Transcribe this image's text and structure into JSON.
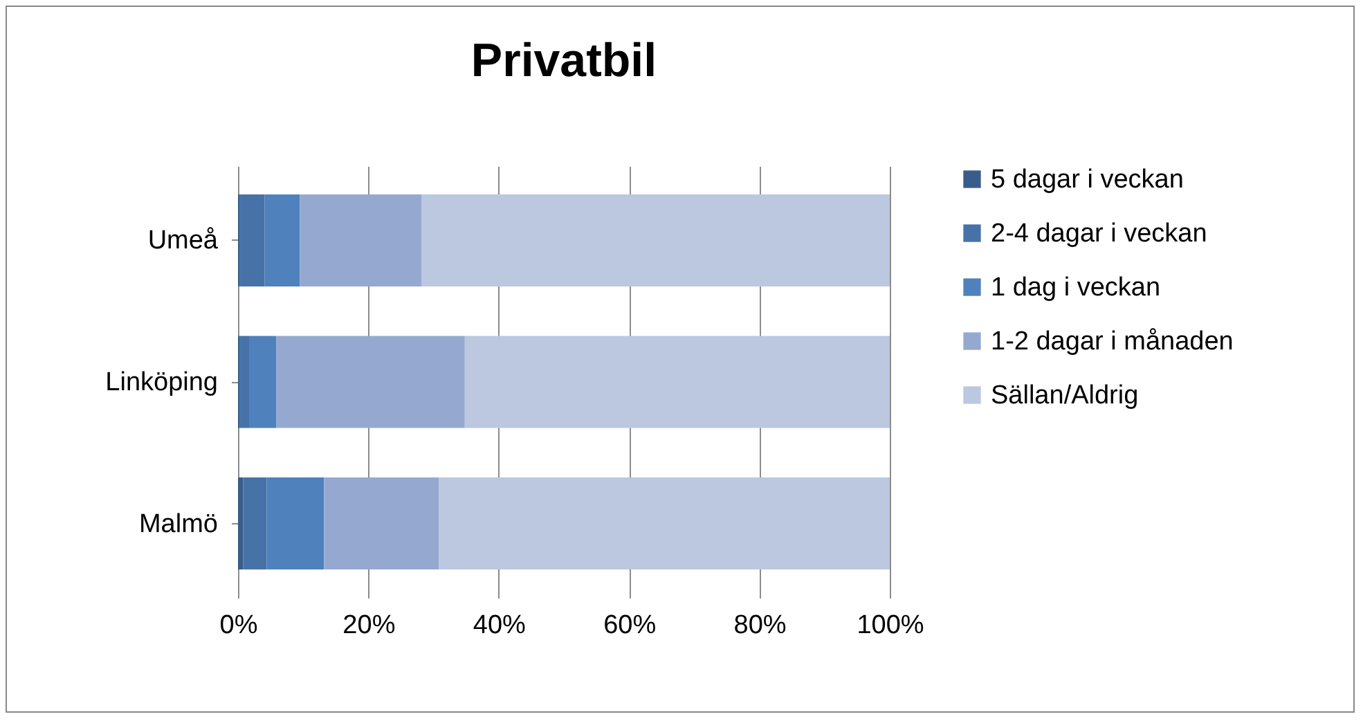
{
  "chart_data": {
    "type": "bar",
    "title": "Privatbil",
    "orientation": "horizontal",
    "stacked": true,
    "categories": [
      "Umeå",
      "Linköping",
      "Malmö"
    ],
    "series": [
      {
        "name": "5 dagar i veckan",
        "color": "#385d8a",
        "values": [
          0.3,
          0.3,
          0.8
        ]
      },
      {
        "name": "2-4 dagar i veckan",
        "color": "#4672a8",
        "values": [
          3.8,
          1.4,
          3.6
        ]
      },
      {
        "name": "1 dag i veckan",
        "color": "#4f81bd",
        "values": [
          5.4,
          4.2,
          8.8
        ]
      },
      {
        "name": "1-2 dagar i månaden",
        "color": "#95a9d0",
        "values": [
          18.7,
          28.9,
          17.6
        ]
      },
      {
        "name": "Sällan/Aldrig",
        "color": "#bcc7e0",
        "values": [
          71.8,
          65.2,
          69.2
        ]
      }
    ],
    "xlim": [
      0,
      100
    ],
    "xticks": [
      {
        "value": 0,
        "label": "0%"
      },
      {
        "value": 20,
        "label": "20%"
      },
      {
        "value": 40,
        "label": "40%"
      },
      {
        "value": 60,
        "label": "60%"
      },
      {
        "value": 80,
        "label": "80%"
      },
      {
        "value": 100,
        "label": "100%"
      }
    ],
    "grid": "x",
    "legend": "right"
  }
}
